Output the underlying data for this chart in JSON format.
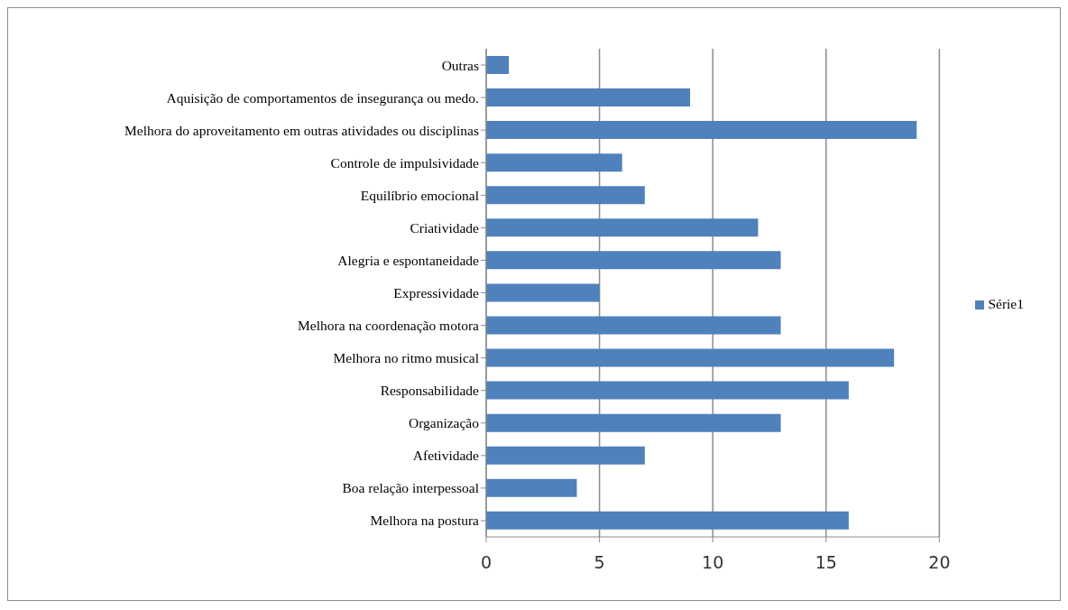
{
  "chart_data": {
    "type": "bar",
    "orientation": "horizontal",
    "categories": [
      "Outras",
      "Aquisição de comportamentos de insegurança ou medo.",
      "Melhora do aproveitamento em outras atividades ou disciplinas",
      "Controle de impulsividade",
      "Equilíbrio emocional",
      "Criatividade",
      "Alegria e espontaneidade",
      "Expressividade",
      "Melhora na coordenação motora",
      "Melhora no ritmo musical",
      "Responsabilidade",
      "Organização",
      "Afetividade",
      "Boa relação interpessoal",
      "Melhora na postura"
    ],
    "series": [
      {
        "name": "Série1",
        "color": "#4f81bd",
        "values": [
          1,
          9,
          19,
          6,
          7,
          12,
          13,
          5,
          13,
          18,
          16,
          13,
          7,
          4,
          16
        ]
      }
    ],
    "xlim": [
      0,
      20
    ],
    "xticks": [
      0,
      5,
      10,
      15,
      20
    ],
    "grid": "x",
    "legend": "right"
  }
}
